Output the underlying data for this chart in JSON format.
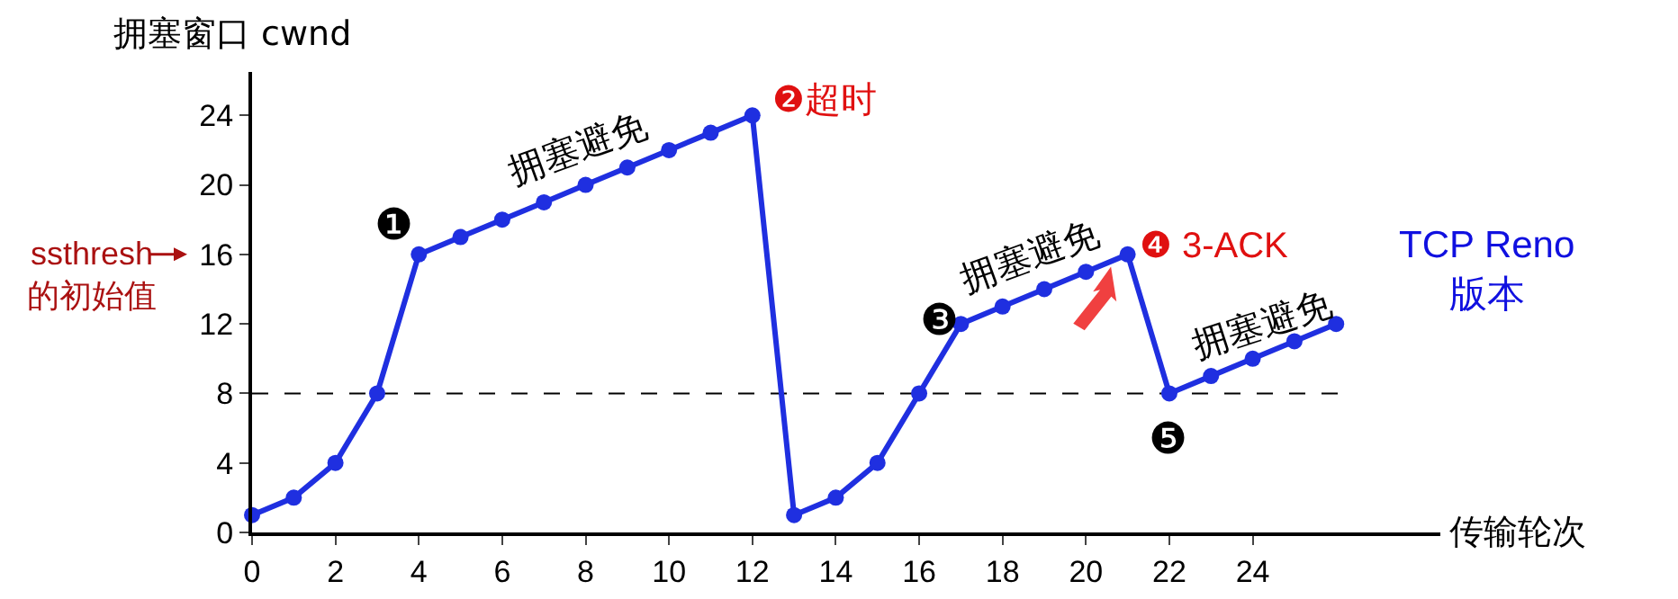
{
  "chart_data": {
    "type": "line",
    "xlabel": "传输轮次",
    "ylabel": "拥塞窗口 cwnd",
    "x": [
      0,
      1,
      2,
      3,
      4,
      5,
      6,
      7,
      8,
      9,
      10,
      11,
      12,
      13,
      14,
      15,
      16,
      17,
      18,
      19,
      20,
      21,
      22,
      23,
      24,
      25,
      26
    ],
    "series": [
      {
        "color": "#1f2fe0",
        "values": [
          1,
          2,
          4,
          8,
          16,
          17,
          18,
          19,
          20,
          21,
          22,
          23,
          24,
          1,
          2,
          4,
          8,
          12,
          13,
          14,
          15,
          16,
          8,
          9,
          10,
          11,
          12
        ]
      }
    ],
    "xlim": [
      0,
      28.5
    ],
    "ylim": [
      0,
      26.5
    ],
    "xticks": [
      0,
      2,
      4,
      6,
      8,
      10,
      12,
      14,
      16,
      18,
      20,
      22,
      24
    ],
    "yticks": [
      0,
      4,
      8,
      12,
      16,
      20,
      24
    ],
    "grid": false,
    "marker": "circle",
    "line_style": "solid",
    "ref_lines": [
      {
        "axis": "y",
        "value": 8,
        "color": "#000000",
        "line_style": "dashed"
      }
    ],
    "annotations": [
      {
        "text": "❶",
        "x": 4,
        "y": 16
      },
      {
        "text": "❷超时",
        "x": 12,
        "y": 24
      },
      {
        "text": "❸",
        "x": 17,
        "y": 12
      },
      {
        "text": "❹ 3-ACK",
        "x": 21,
        "y": 16
      },
      {
        "text": "❺",
        "x": 22,
        "y": 8
      },
      {
        "text": "拥塞避免",
        "x": 8,
        "y": 20
      },
      {
        "text": "拥塞避免",
        "x": 19,
        "y": 14
      },
      {
        "text": "拥塞避免",
        "x": 24.5,
        "y": 10.5
      },
      "ssthresh\n的初始值",
      "TCP Reno\n版本"
    ]
  }
}
